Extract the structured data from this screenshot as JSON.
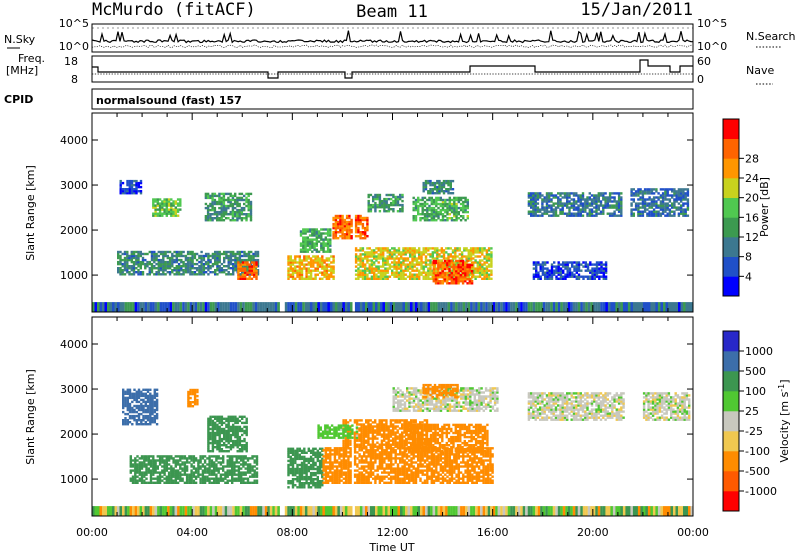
{
  "header": {
    "station": "McMurdo (fitACF)",
    "beam": "Beam 11",
    "date": "15/Jan/2011"
  },
  "noise_panel": {
    "left_label": "N.Sky",
    "right_label": "N.Search",
    "ytick_top": "10^5",
    "ytick_bottom": "10^0"
  },
  "freq_panel": {
    "left_label_1": "Freq.",
    "left_label_2": "[MHz]",
    "ytick_top": "18",
    "ytick_bottom": "8",
    "right_label": "Nave",
    "rtick_top": "60",
    "rtick_bottom": "0"
  },
  "cpid": {
    "label": "CPID",
    "value": "normalsound (fast) 157"
  },
  "colors": {
    "power_scale": [
      "#0000ff",
      "#2050c8",
      "#3c7890",
      "#3c9a50",
      "#50c850",
      "#c8d21e",
      "#ff9600",
      "#ff6400",
      "#ff0000"
    ],
    "velocity_scale": [
      "#ff0000",
      "#ff5a00",
      "#ff8c00",
      "#f0c850",
      "#c8c8be",
      "#50c832",
      "#3c9650",
      "#3c6eaa",
      "#2828c8"
    ]
  },
  "chart_data": [
    {
      "type": "heatmap",
      "panel": "power",
      "xlabel": "Time UT",
      "ylabel": "Slant Range [km]",
      "x_ticks": [
        "00:00",
        "04:00",
        "08:00",
        "12:00",
        "16:00",
        "20:00",
        "00:00"
      ],
      "x_range_hours": [
        0,
        24
      ],
      "y_ticks": [
        1000,
        2000,
        3000,
        4000
      ],
      "ylim": [
        180,
        4600
      ],
      "colorbar": {
        "label": "Power [dB]",
        "ticks": [
          4,
          8,
          12,
          16,
          20,
          24,
          28
        ],
        "range": [
          0,
          32
        ]
      },
      "patches": [
        {
          "t0": 1.0,
          "t1": 6.6,
          "r0": 1000,
          "r1": 1500,
          "value": 10
        },
        {
          "t0": 2.4,
          "t1": 3.5,
          "r0": 2300,
          "r1": 2700,
          "value": 16
        },
        {
          "t0": 1.1,
          "t1": 2.0,
          "r0": 2800,
          "r1": 3100,
          "value": 5
        },
        {
          "t0": 4.5,
          "t1": 6.3,
          "r0": 2200,
          "r1": 2800,
          "value": 12
        },
        {
          "t0": 5.8,
          "t1": 6.6,
          "r0": 900,
          "r1": 1300,
          "value": 26
        },
        {
          "t0": 7.8,
          "t1": 9.6,
          "r0": 900,
          "r1": 1400,
          "value": 22
        },
        {
          "t0": 8.3,
          "t1": 9.5,
          "r0": 1500,
          "r1": 2000,
          "value": 14
        },
        {
          "t0": 9.6,
          "t1": 11.0,
          "r0": 1800,
          "r1": 2300,
          "value": 26
        },
        {
          "t0": 10.5,
          "t1": 15.9,
          "r0": 900,
          "r1": 1600,
          "value": 20
        },
        {
          "t0": 13.6,
          "t1": 15.2,
          "r0": 800,
          "r1": 1300,
          "value": 27
        },
        {
          "t0": 11.0,
          "t1": 12.4,
          "r0": 2400,
          "r1": 2800,
          "value": 12
        },
        {
          "t0": 12.8,
          "t1": 15.0,
          "r0": 2200,
          "r1": 2700,
          "value": 14
        },
        {
          "t0": 13.2,
          "t1": 14.4,
          "r0": 2800,
          "r1": 3100,
          "value": 10
        },
        {
          "t0": 17.4,
          "t1": 21.1,
          "r0": 2300,
          "r1": 2800,
          "value": 9
        },
        {
          "t0": 17.6,
          "t1": 20.5,
          "r0": 900,
          "r1": 1300,
          "value": 5
        },
        {
          "t0": 21.5,
          "t1": 23.8,
          "r0": 2300,
          "r1": 2900,
          "value": 8
        }
      ]
    },
    {
      "type": "heatmap",
      "panel": "velocity",
      "xlabel": "Time UT",
      "ylabel": "Slant Range [km]",
      "x_ticks": [
        "00:00",
        "04:00",
        "08:00",
        "12:00",
        "16:00",
        "20:00",
        "00:00"
      ],
      "x_range_hours": [
        0,
        24
      ],
      "y_ticks": [
        1000,
        2000,
        3000,
        4000
      ],
      "ylim": [
        180,
        4600
      ],
      "colorbar": {
        "label": "Velocity [m s^-1]",
        "ticks": [
          1000,
          500,
          100,
          25,
          -25,
          -100,
          -500,
          -1000
        ]
      },
      "patches": [
        {
          "t0": 1.5,
          "t1": 6.6,
          "r0": 900,
          "r1": 1500,
          "value": 300
        },
        {
          "t0": 1.2,
          "t1": 2.6,
          "r0": 2200,
          "r1": 3000,
          "value": 700
        },
        {
          "t0": 3.8,
          "t1": 4.2,
          "r0": 2600,
          "r1": 3000,
          "value": -300
        },
        {
          "t0": 4.6,
          "t1": 6.2,
          "r0": 1600,
          "r1": 2400,
          "value": 300
        },
        {
          "t0": 7.8,
          "t1": 9.2,
          "r0": 800,
          "r1": 1700,
          "value": 300
        },
        {
          "t0": 9.2,
          "t1": 16.0,
          "r0": 900,
          "r1": 1700,
          "value": -300
        },
        {
          "t0": 10.0,
          "t1": 13.4,
          "r0": 1700,
          "r1": 2300,
          "value": -300
        },
        {
          "t0": 12.5,
          "t1": 15.8,
          "r0": 1600,
          "r1": 2200,
          "value": -300
        },
        {
          "t0": 9.0,
          "t1": 10.6,
          "r0": 1900,
          "r1": 2200,
          "value": 60
        },
        {
          "t0": 12.0,
          "t1": 16.2,
          "r0": 2500,
          "r1": 3000,
          "value": 0
        },
        {
          "t0": 17.4,
          "t1": 21.2,
          "r0": 2300,
          "r1": 2900,
          "value": 0
        },
        {
          "t0": 22.0,
          "t1": 23.8,
          "r0": 2300,
          "r1": 2900,
          "value": 0
        },
        {
          "t0": 13.2,
          "t1": 14.6,
          "r0": 2800,
          "r1": 3100,
          "value": -300
        }
      ]
    }
  ]
}
